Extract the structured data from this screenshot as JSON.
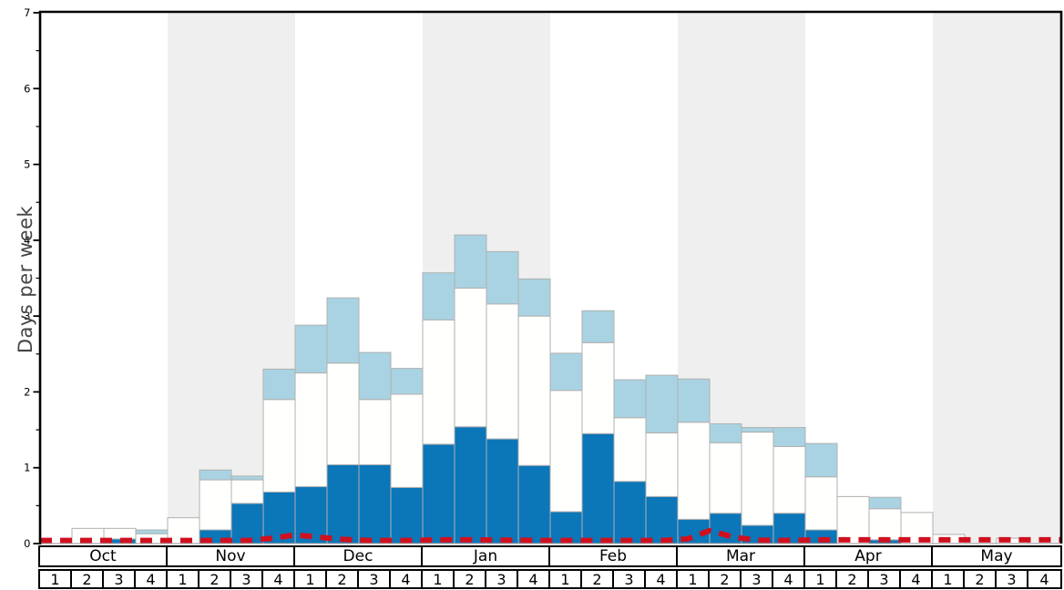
{
  "y_axis": {
    "label": "Days per week",
    "tick_labels": [
      "0",
      "1",
      "2",
      "3",
      "4",
      "5",
      "6",
      "7"
    ],
    "minor_ticks": [
      0.5,
      1.5,
      2.5,
      3.5,
      4.5,
      5.5,
      6.5
    ]
  },
  "months": [
    {
      "label": "Oct",
      "weeks": [
        "1",
        "2",
        "3",
        "4"
      ],
      "shaded": false
    },
    {
      "label": "Nov",
      "weeks": [
        "1",
        "2",
        "3",
        "4"
      ],
      "shaded": true
    },
    {
      "label": "Dec",
      "weeks": [
        "1",
        "2",
        "3",
        "4"
      ],
      "shaded": false
    },
    {
      "label": "Jan",
      "weeks": [
        "1",
        "2",
        "3",
        "4"
      ],
      "shaded": true
    },
    {
      "label": "Feb",
      "weeks": [
        "1",
        "2",
        "3",
        "4"
      ],
      "shaded": false
    },
    {
      "label": "Mar",
      "weeks": [
        "1",
        "2",
        "3",
        "4"
      ],
      "shaded": true
    },
    {
      "label": "Apr",
      "weeks": [
        "1",
        "2",
        "3",
        "4"
      ],
      "shaded": false
    },
    {
      "label": "May",
      "weeks": [
        "1",
        "2",
        "3",
        "4"
      ],
      "shaded": true
    }
  ],
  "colors": {
    "dark_blue": "#0b76b8",
    "bar_white": "#fffffd",
    "light_blue": "#a9d3e2",
    "bar_border": "#b0b0b0",
    "red_line": "#d0101f",
    "band_gray": "#efefef",
    "axis_black": "#000000",
    "baseline_gray": "#aaaaaa",
    "ylabel_gray": "#444444"
  },
  "chart_data": {
    "type": "bar",
    "stacked": true,
    "title": "",
    "xlabel": "",
    "ylabel": "Days per week",
    "ylim": [
      0,
      7
    ],
    "grid": false,
    "legend": "none",
    "categories": [
      "Oct-1",
      "Oct-2",
      "Oct-3",
      "Oct-4",
      "Nov-1",
      "Nov-2",
      "Nov-3",
      "Nov-4",
      "Dec-1",
      "Dec-2",
      "Dec-3",
      "Dec-4",
      "Jan-1",
      "Jan-2",
      "Jan-3",
      "Jan-4",
      "Feb-1",
      "Feb-2",
      "Feb-3",
      "Feb-4",
      "Mar-1",
      "Mar-2",
      "Mar-3",
      "Mar-4",
      "Apr-1",
      "Apr-2",
      "Apr-3",
      "Apr-4",
      "May-1",
      "May-2",
      "May-3",
      "May-4"
    ],
    "series": [
      {
        "name": "dark-blue-segment",
        "color_key": "dark_blue",
        "values": [
          0,
          0,
          0.06,
          0,
          0,
          0.18,
          0.53,
          0.68,
          0.75,
          1.04,
          1.04,
          0.74,
          1.31,
          1.54,
          1.38,
          1.03,
          0.42,
          1.45,
          0.82,
          0.62,
          0.32,
          0.4,
          0.24,
          0.4,
          0.18,
          0,
          0.05,
          0,
          0,
          0,
          0,
          0
        ]
      },
      {
        "name": "white-segment",
        "color_key": "bar_white",
        "values": [
          0,
          0.2,
          0.14,
          0.13,
          0.34,
          0.66,
          0.31,
          1.22,
          1.5,
          1.34,
          0.86,
          1.23,
          1.64,
          1.83,
          1.78,
          1.97,
          1.6,
          1.2,
          0.84,
          0.84,
          1.28,
          0.93,
          1.23,
          0.88,
          0.7,
          0.62,
          0.41,
          0.41,
          0.12,
          0,
          0.07,
          0
        ]
      },
      {
        "name": "light-blue-segment",
        "color_key": "light_blue",
        "values": [
          0,
          0,
          0,
          0.05,
          0,
          0.13,
          0.05,
          0.4,
          0.63,
          0.86,
          0.62,
          0.34,
          0.62,
          0.7,
          0.69,
          0.49,
          0.49,
          0.42,
          0.5,
          0.76,
          0.57,
          0.25,
          0.06,
          0.25,
          0.44,
          0,
          0.15,
          0,
          0,
          0,
          0,
          0
        ]
      }
    ],
    "bar_totals": [
      0,
      0.2,
      0.2,
      0.18,
      0.34,
      0.97,
      0.89,
      2.3,
      2.88,
      3.24,
      2.52,
      2.31,
      3.57,
      4.07,
      3.85,
      3.49,
      2.51,
      3.07,
      2.16,
      2.22,
      2.17,
      1.58,
      1.53,
      1.53,
      1.32,
      0.62,
      0.61,
      0.41,
      0.12,
      0,
      0.07,
      0
    ],
    "red_dashed_line": {
      "name": "red-dashed-line",
      "x_units": "weeks from left edge of Oct week 1 (0 to 32)",
      "points": [
        [
          0,
          0.04
        ],
        [
          4.5,
          0.04
        ],
        [
          6.5,
          0.04
        ],
        [
          7.3,
          0.07
        ],
        [
          8,
          0.115
        ],
        [
          8.7,
          0.085
        ],
        [
          9.5,
          0.055
        ],
        [
          10.3,
          0.04
        ],
        [
          11.5,
          0.04
        ],
        [
          12.5,
          0.05
        ],
        [
          13.5,
          0.05
        ],
        [
          14.5,
          0.045
        ],
        [
          16,
          0.04
        ],
        [
          19.5,
          0.04
        ],
        [
          20.3,
          0.06
        ],
        [
          21,
          0.17
        ],
        [
          21.8,
          0.08
        ],
        [
          22.5,
          0.045
        ],
        [
          23.5,
          0.04
        ],
        [
          24.5,
          0.05
        ],
        [
          32,
          0.05
        ]
      ]
    },
    "shaded_months": [
      "Nov",
      "Jan",
      "Mar",
      "May"
    ]
  }
}
